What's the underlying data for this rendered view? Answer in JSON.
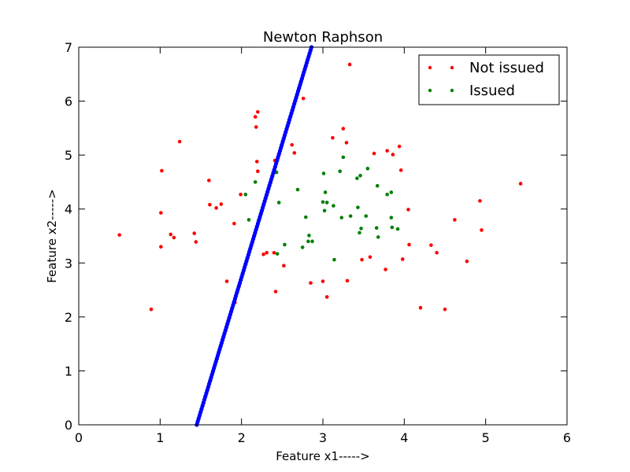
{
  "chart_data": {
    "type": "scatter",
    "title": "Newton Raphson",
    "xlabel": "Feature x1----->",
    "ylabel": "Feature x2----->",
    "xlim": [
      0,
      6
    ],
    "ylim": [
      0,
      7
    ],
    "xticks": [
      0,
      1,
      2,
      3,
      4,
      5,
      6
    ],
    "yticks": [
      0,
      1,
      2,
      3,
      4,
      5,
      6,
      7
    ],
    "grid": false,
    "legend_position": "top-right",
    "series": [
      {
        "name": "Not issued",
        "color": "#ff0000",
        "marker": "point",
        "points": [
          [
            0.5,
            3.52
          ],
          [
            0.89,
            2.14
          ],
          [
            1.01,
            3.93
          ],
          [
            1.02,
            4.71
          ],
          [
            1.01,
            3.3
          ],
          [
            1.13,
            3.53
          ],
          [
            1.17,
            3.47
          ],
          [
            1.24,
            5.25
          ],
          [
            1.42,
            3.55
          ],
          [
            1.44,
            3.39
          ],
          [
            1.6,
            4.53
          ],
          [
            1.61,
            4.08
          ],
          [
            1.69,
            4.02
          ],
          [
            1.75,
            4.09
          ],
          [
            1.82,
            2.66
          ],
          [
            1.91,
            3.73
          ],
          [
            1.92,
            2.27
          ],
          [
            1.99,
            4.27
          ],
          [
            2.17,
            5.71
          ],
          [
            2.18,
            5.52
          ],
          [
            2.2,
            5.8
          ],
          [
            2.19,
            4.88
          ],
          [
            2.2,
            4.7
          ],
          [
            2.27,
            3.16
          ],
          [
            2.31,
            3.19
          ],
          [
            2.4,
            3.19
          ],
          [
            2.41,
            4.9
          ],
          [
            2.42,
            2.47
          ],
          [
            2.52,
            2.95
          ],
          [
            2.62,
            5.19
          ],
          [
            2.65,
            5.04
          ],
          [
            2.76,
            6.05
          ],
          [
            2.85,
            2.63
          ],
          [
            3.0,
            2.66
          ],
          [
            3.05,
            2.37
          ],
          [
            3.12,
            5.32
          ],
          [
            3.25,
            5.49
          ],
          [
            3.29,
            5.23
          ],
          [
            3.3,
            2.67
          ],
          [
            3.33,
            6.68
          ],
          [
            3.48,
            3.06
          ],
          [
            3.58,
            3.11
          ],
          [
            3.63,
            5.03
          ],
          [
            3.77,
            2.88
          ],
          [
            3.79,
            5.08
          ],
          [
            3.86,
            5.01
          ],
          [
            3.94,
            5.16
          ],
          [
            3.96,
            4.72
          ],
          [
            3.98,
            3.07
          ],
          [
            4.05,
            3.99
          ],
          [
            4.06,
            3.34
          ],
          [
            4.2,
            2.17
          ],
          [
            4.33,
            3.33
          ],
          [
            4.4,
            3.19
          ],
          [
            4.5,
            2.14
          ],
          [
            4.62,
            3.8
          ],
          [
            4.77,
            3.03
          ],
          [
            4.93,
            4.15
          ],
          [
            4.95,
            3.61
          ],
          [
            5.43,
            4.47
          ]
        ]
      },
      {
        "name": "Issued",
        "color": "#008000",
        "marker": "point",
        "points": [
          [
            2.05,
            4.27
          ],
          [
            2.09,
            3.8
          ],
          [
            2.17,
            4.5
          ],
          [
            2.43,
            4.68
          ],
          [
            2.44,
            3.17
          ],
          [
            2.46,
            4.12
          ],
          [
            2.53,
            3.34
          ],
          [
            2.69,
            4.36
          ],
          [
            2.75,
            3.29
          ],
          [
            2.79,
            3.85
          ],
          [
            2.82,
            3.4
          ],
          [
            2.83,
            3.51
          ],
          [
            2.87,
            3.4
          ],
          [
            3.0,
            4.13
          ],
          [
            3.01,
            4.66
          ],
          [
            3.02,
            3.97
          ],
          [
            3.03,
            4.31
          ],
          [
            3.05,
            4.12
          ],
          [
            3.13,
            4.06
          ],
          [
            3.14,
            3.06
          ],
          [
            3.21,
            4.7
          ],
          [
            3.23,
            3.84
          ],
          [
            3.25,
            4.96
          ],
          [
            3.34,
            3.87
          ],
          [
            3.42,
            4.57
          ],
          [
            3.43,
            4.03
          ],
          [
            3.45,
            3.56
          ],
          [
            3.46,
            4.62
          ],
          [
            3.47,
            3.64
          ],
          [
            3.53,
            3.87
          ],
          [
            3.55,
            4.75
          ],
          [
            3.66,
            3.65
          ],
          [
            3.67,
            4.43
          ],
          [
            3.68,
            3.48
          ],
          [
            3.79,
            4.27
          ],
          [
            3.84,
            4.31
          ],
          [
            3.84,
            3.84
          ],
          [
            3.85,
            3.66
          ],
          [
            3.92,
            3.63
          ]
        ]
      },
      {
        "name": "",
        "color": "#0000ff",
        "marker": "line",
        "x": [
          1.45,
          2.86
        ],
        "y": [
          0,
          7
        ]
      }
    ]
  }
}
